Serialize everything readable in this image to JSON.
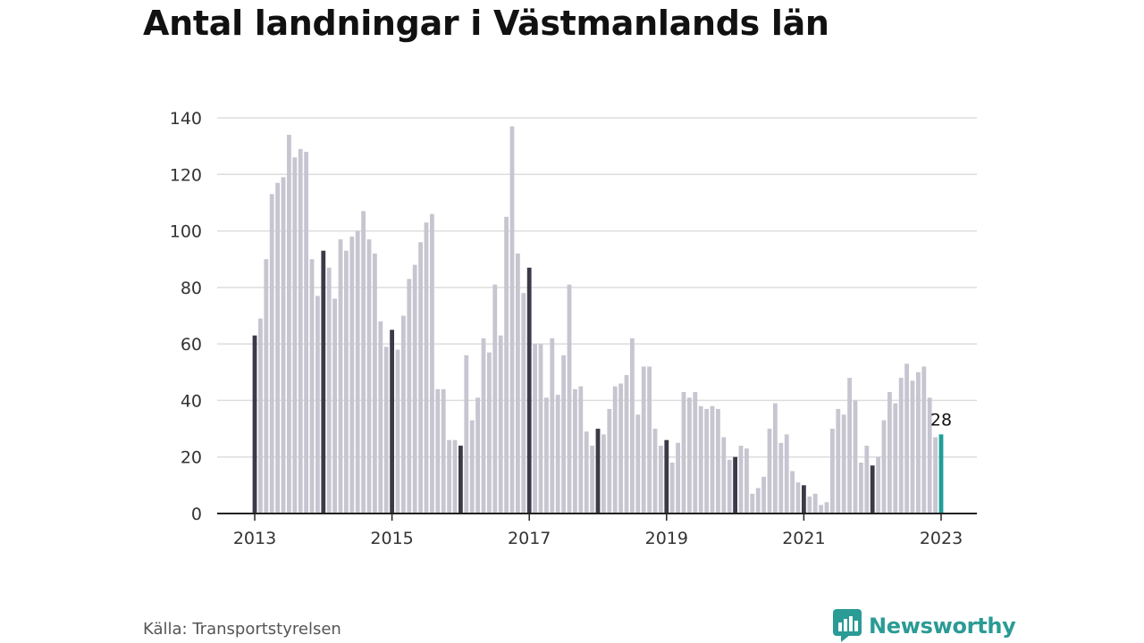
{
  "title": "Antal landningar i Västmanlands län",
  "source": "Källa: Transportstyrelsen",
  "brand": "Newsworthy",
  "colors": {
    "bar": "#c6c5d0",
    "january_bar": "#3b3a48",
    "highlight_bar": "#1e9e98",
    "grid": "#dddddd",
    "axis": "#222222",
    "text": "#333333",
    "brand": "#2a9b95"
  },
  "chart_data": {
    "type": "bar",
    "title": "Antal landningar i Västmanlands län",
    "xlabel": "",
    "ylabel": "",
    "ylim": [
      0,
      140
    ],
    "yticks": [
      0,
      20,
      40,
      60,
      80,
      100,
      120,
      140
    ],
    "xtick_labels": [
      "2013",
      "2015",
      "2017",
      "2019",
      "2021",
      "2023"
    ],
    "start": "2013-01",
    "end": "2023-01",
    "frequency": "monthly",
    "highlight": {
      "date": "2023-01",
      "value": 28,
      "label": "28"
    },
    "grid": true,
    "legend": "none",
    "values": [
      63,
      69,
      90,
      113,
      117,
      119,
      134,
      126,
      129,
      128,
      90,
      77,
      93,
      87,
      76,
      97,
      93,
      98,
      100,
      107,
      97,
      92,
      68,
      59,
      65,
      58,
      70,
      83,
      88,
      96,
      103,
      106,
      44,
      44,
      26,
      26,
      24,
      56,
      33,
      41,
      62,
      57,
      81,
      63,
      105,
      137,
      92,
      78,
      87,
      60,
      60,
      41,
      62,
      42,
      56,
      81,
      44,
      45,
      29,
      24,
      30,
      28,
      37,
      45,
      46,
      49,
      62,
      35,
      52,
      52,
      30,
      24,
      26,
      18,
      25,
      43,
      41,
      43,
      38,
      37,
      38,
      37,
      27,
      19,
      20,
      24,
      23,
      7,
      9,
      13,
      30,
      39,
      25,
      28,
      15,
      11,
      10,
      6,
      7,
      3,
      4,
      30,
      37,
      35,
      48,
      40,
      18,
      24,
      17,
      20,
      33,
      43,
      39,
      48,
      53,
      47,
      50,
      52,
      41,
      27,
      28
    ]
  }
}
